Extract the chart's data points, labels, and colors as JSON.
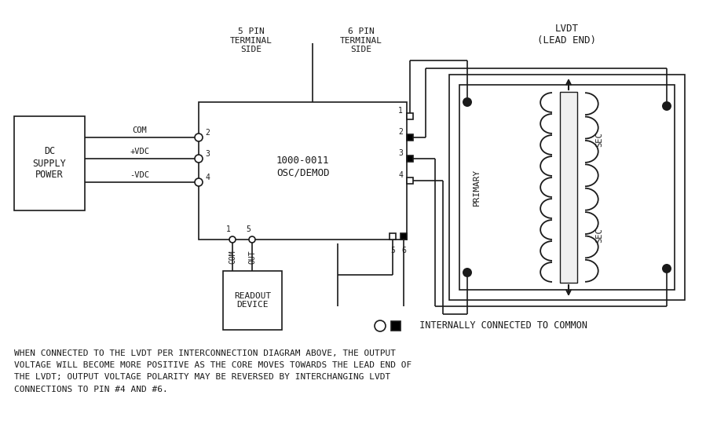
{
  "bg_color": "#ffffff",
  "line_color": "#1a1a1a",
  "title": "LVDT\n(LEAD END)",
  "label_5pin": "5 PIN\nTERMINAL\nSIDE",
  "label_6pin": "6 PIN\nTERMINAL\nSIDE",
  "label_dc": "DC\nSUPPLY\nPOWER",
  "label_osc": "1000-0011\nOSC/DEMOD",
  "label_readout": "READOUT\nDEVICE",
  "label_primary": "PRIMARY",
  "label_sec1": "SEC",
  "label_sec2": "SEC",
  "legend_text": "  INTERNALLY CONNECTED TO COMMON",
  "footnote": "WHEN CONNECTED TO THE LVDT PER INTERCONNECTION DIAGRAM ABOVE, THE OUTPUT\nVOLTAGE WILL BECOME MORE POSITIVE AS THE CORE MOVES TOWARDS THE LEAD END OF\nTHE LVDT; OUTPUT VOLTAGE POLARITY MAY BE REVERSED BY INTERCHANGING LVDT\nCONNECTIONS TO PIN #4 AND #6."
}
